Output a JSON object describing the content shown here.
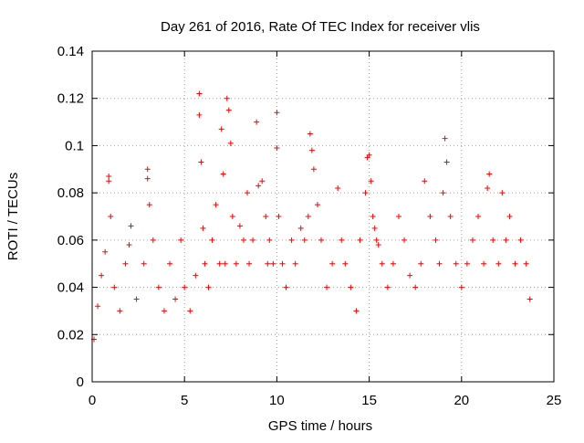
{
  "chart_data": {
    "type": "scatter",
    "title": "Day 261 of 2016, Rate Of TEC Index for receiver vlis",
    "xlabel": "GPS time / hours",
    "ylabel": "ROTI / TECUs",
    "xlim": [
      0,
      25
    ],
    "ylim": [
      0,
      0.14
    ],
    "xticks": [
      0,
      5,
      10,
      15,
      20,
      25
    ],
    "xtick_labels": [
      "0",
      "5",
      "10",
      "15",
      "20",
      "25"
    ],
    "yticks": [
      0,
      0.02,
      0.04,
      0.06,
      0.08,
      0.1,
      0.12,
      0.14
    ],
    "ytick_labels": [
      "0",
      "0.02",
      "0.04",
      "0.06",
      "0.08",
      "0.1",
      "0.12",
      "0.14"
    ],
    "grid": true,
    "marker": "plus",
    "marker_color": "#ff0000",
    "series": [
      {
        "name": "ROTI",
        "x": [
          0.1,
          0.3,
          0.5,
          0.7,
          0.9,
          0.9,
          1.0,
          1.2,
          1.5,
          1.8,
          2.0,
          2.1,
          2.4,
          2.8,
          3.0,
          3.0,
          3.1,
          3.3,
          3.6,
          3.9,
          4.2,
          4.5,
          4.8,
          5.0,
          5.3,
          5.6,
          5.8,
          5.8,
          5.9,
          6.0,
          6.1,
          6.3,
          6.5,
          6.7,
          6.9,
          7.0,
          7.1,
          7.2,
          7.3,
          7.4,
          7.5,
          7.6,
          7.8,
          8.0,
          8.2,
          8.4,
          8.5,
          8.7,
          8.9,
          9.0,
          9.2,
          9.4,
          9.5,
          9.6,
          9.8,
          10.0,
          10.0,
          10.1,
          10.3,
          10.5,
          10.8,
          11.0,
          11.3,
          11.5,
          11.7,
          11.8,
          11.9,
          12.0,
          12.2,
          12.4,
          12.7,
          13.0,
          13.3,
          13.5,
          13.7,
          14.0,
          14.3,
          14.5,
          14.8,
          14.9,
          15.0,
          15.1,
          15.2,
          15.3,
          15.4,
          15.5,
          15.7,
          16.0,
          16.3,
          16.6,
          16.9,
          17.2,
          17.5,
          17.8,
          18.0,
          18.3,
          18.6,
          18.8,
          19.0,
          19.1,
          19.2,
          19.4,
          19.7,
          20.0,
          20.3,
          20.6,
          20.9,
          21.2,
          21.4,
          21.5,
          21.7,
          22.0,
          22.2,
          22.4,
          22.6,
          22.9,
          23.2,
          23.5,
          23.7
        ],
        "y": [
          0.018,
          0.032,
          0.045,
          0.055,
          0.085,
          0.087,
          0.07,
          0.04,
          0.03,
          0.05,
          0.058,
          0.066,
          0.035,
          0.05,
          0.086,
          0.09,
          0.075,
          0.06,
          0.04,
          0.03,
          0.05,
          0.035,
          0.06,
          0.04,
          0.03,
          0.045,
          0.113,
          0.122,
          0.093,
          0.065,
          0.05,
          0.04,
          0.06,
          0.075,
          0.05,
          0.107,
          0.088,
          0.05,
          0.12,
          0.115,
          0.101,
          0.07,
          0.05,
          0.066,
          0.06,
          0.08,
          0.05,
          0.06,
          0.11,
          0.083,
          0.085,
          0.07,
          0.05,
          0.06,
          0.05,
          0.114,
          0.099,
          0.07,
          0.05,
          0.04,
          0.06,
          0.05,
          0.065,
          0.06,
          0.07,
          0.105,
          0.098,
          0.09,
          0.075,
          0.06,
          0.04,
          0.05,
          0.082,
          0.06,
          0.05,
          0.04,
          0.03,
          0.06,
          0.08,
          0.095,
          0.096,
          0.085,
          0.07,
          0.065,
          0.06,
          0.058,
          0.05,
          0.04,
          0.05,
          0.07,
          0.06,
          0.045,
          0.04,
          0.05,
          0.085,
          0.07,
          0.06,
          0.05,
          0.08,
          0.103,
          0.093,
          0.07,
          0.05,
          0.04,
          0.05,
          0.06,
          0.07,
          0.05,
          0.082,
          0.088,
          0.06,
          0.05,
          0.08,
          0.06,
          0.07,
          0.05,
          0.06,
          0.05,
          0.035
        ]
      }
    ]
  }
}
